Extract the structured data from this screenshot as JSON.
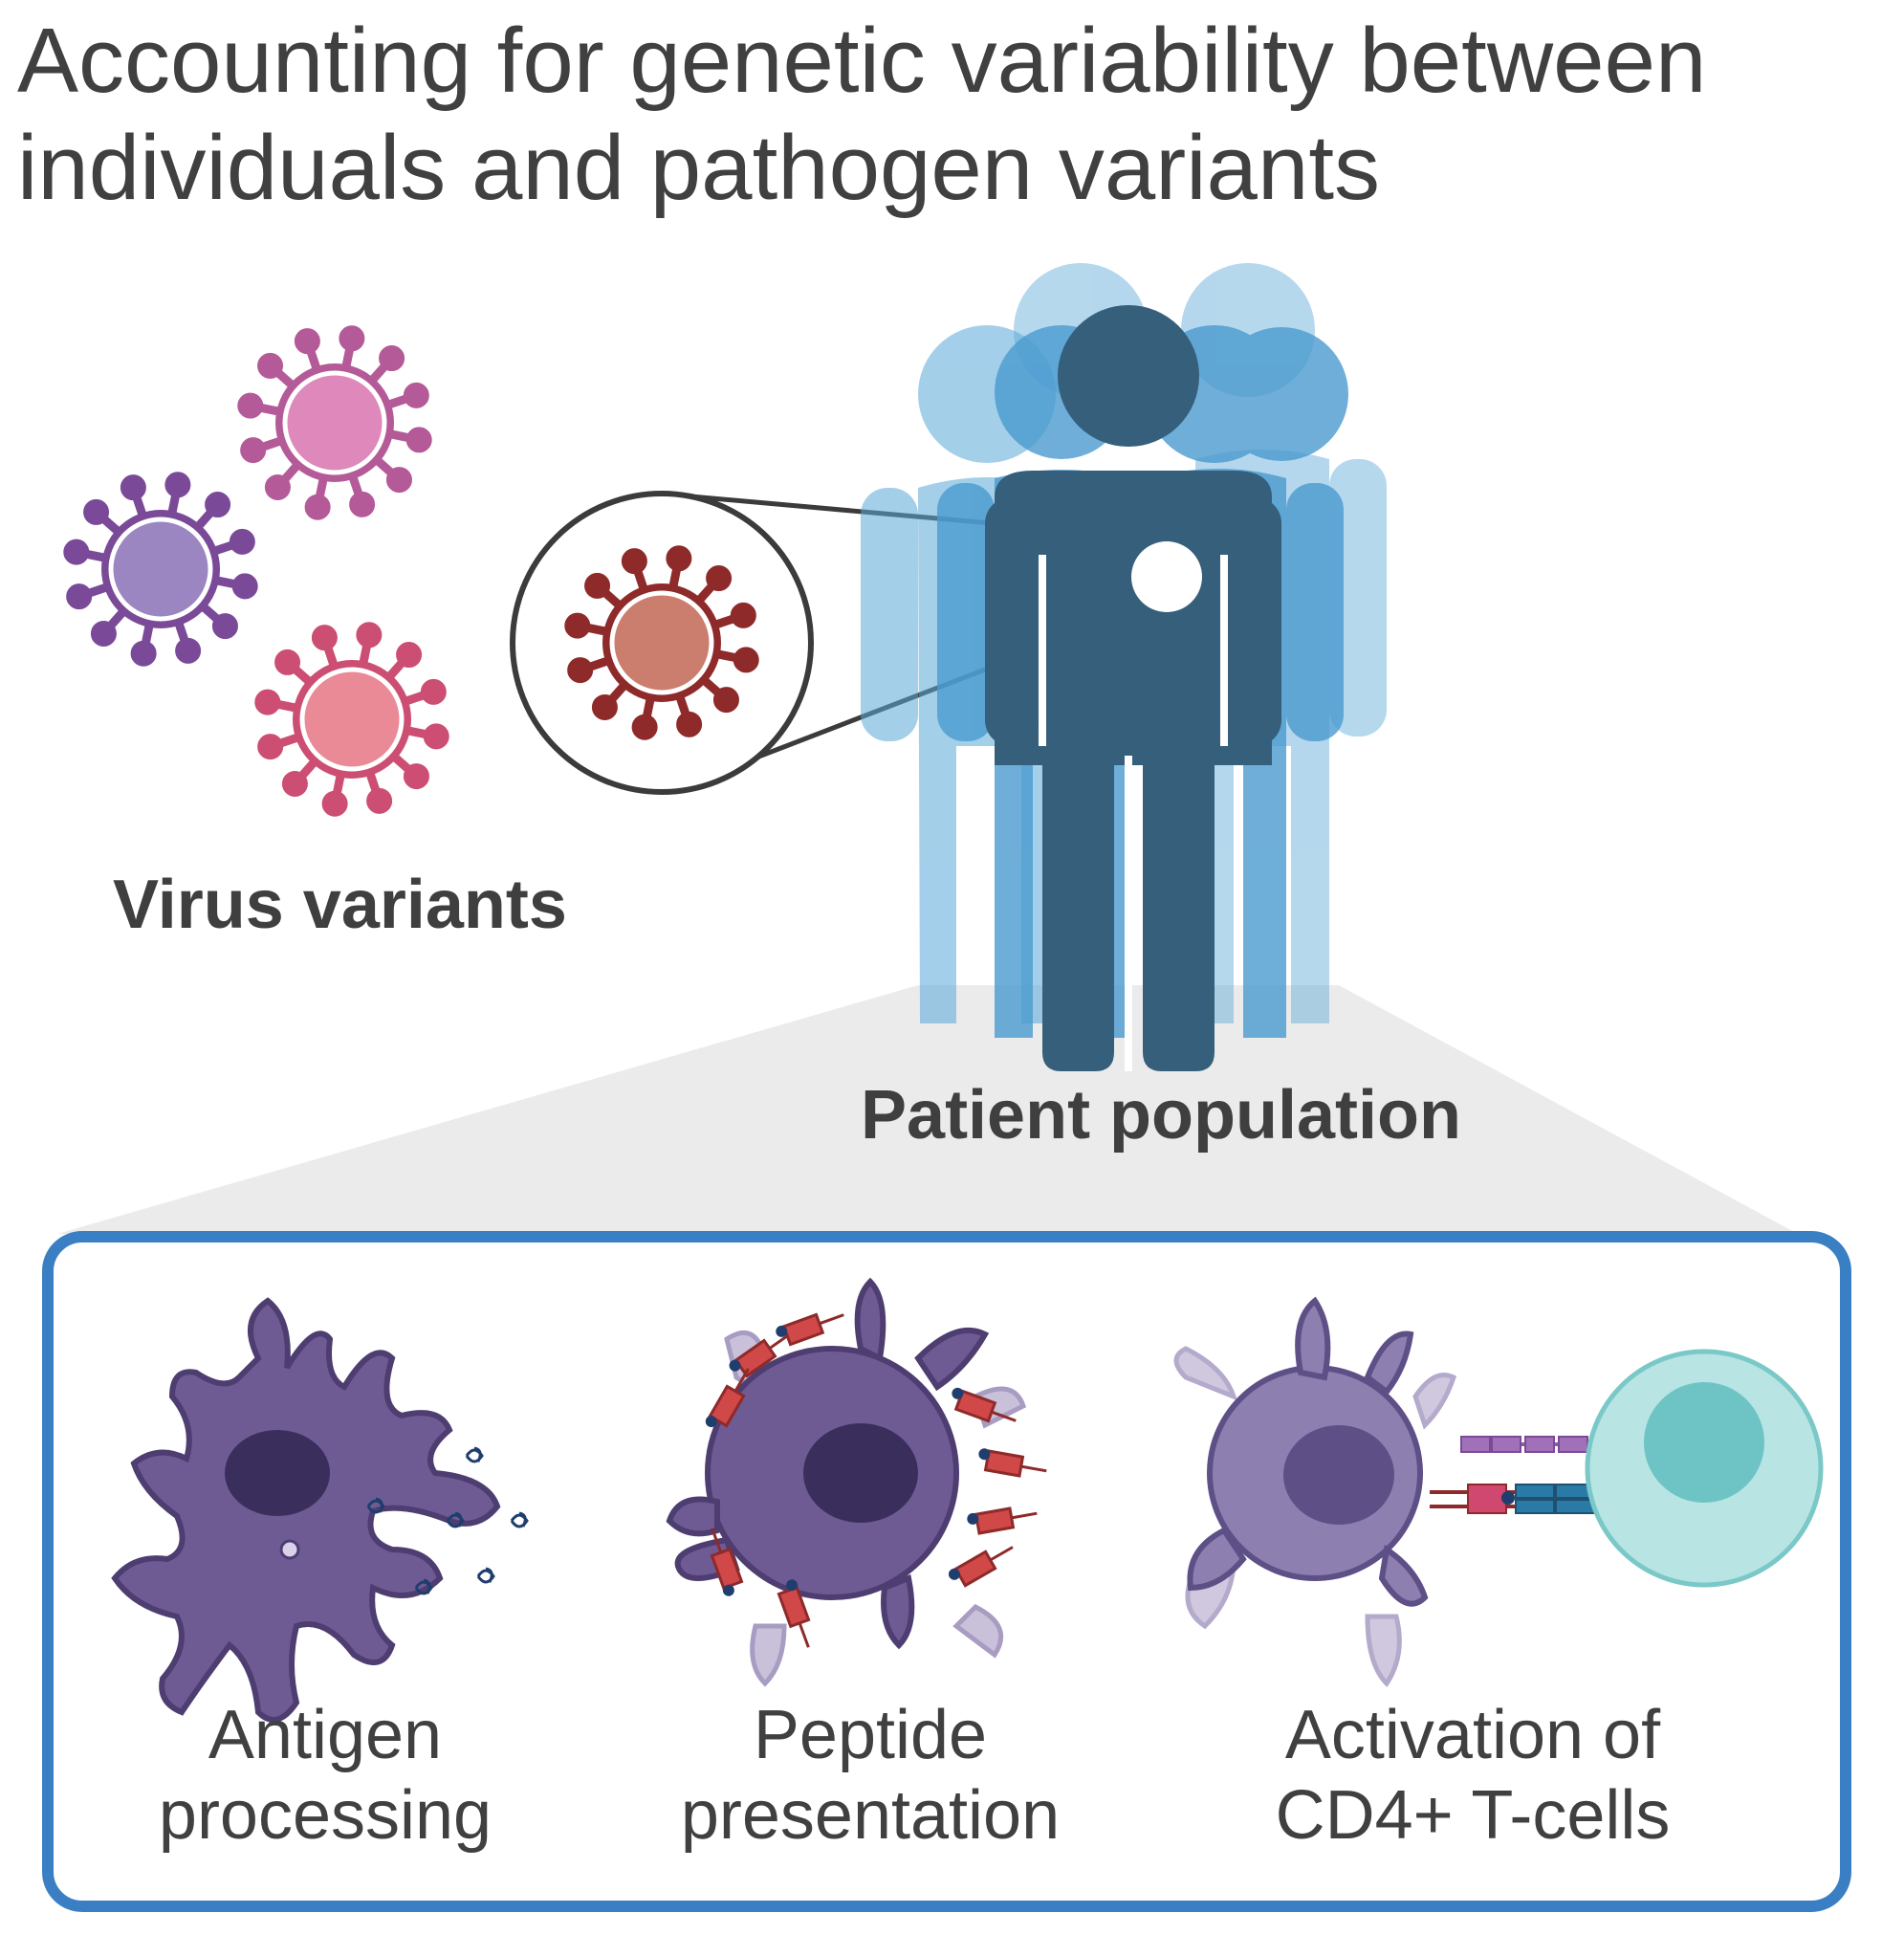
{
  "title": {
    "line1": "Accounting for genetic variability between",
    "line2": "individuals and pathogen variants"
  },
  "virus_label": "Virus variants",
  "population_label": "Patient population",
  "steps": [
    {
      "line1": "Antigen",
      "line2": "processing"
    },
    {
      "line1": "Peptide",
      "line2": "presentation"
    },
    {
      "line1": "Activation of",
      "line2": "CD4+ T-cells"
    }
  ],
  "colors": {
    "text": "#404040",
    "virus_purple": "#8e5ba8",
    "virus_pink": "#c070a8",
    "virus_rose": "#cc5a78",
    "virus_red": "#8e2a2a",
    "person_dark": "#355f7a",
    "person_light": "#5aa8d8",
    "panel_border": "#3a7fc4",
    "cell_purple": "#6e5b94",
    "tcell": "#7ac8c8"
  }
}
